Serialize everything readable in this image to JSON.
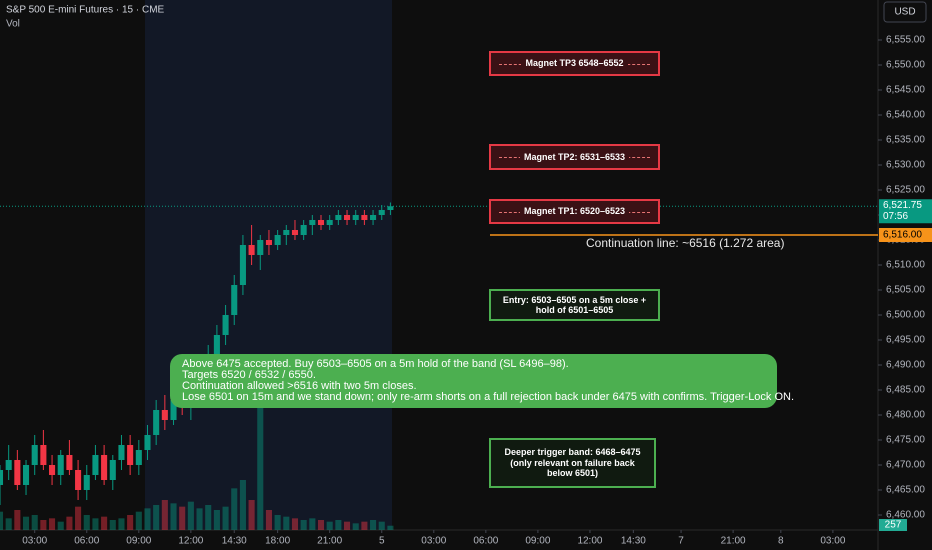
{
  "chart_data": {
    "type": "candlestick",
    "title": "S&P 500 E-mini Futures · 15 · CME",
    "volume_label": "Vol",
    "currency": "USD",
    "x": [
      0.5,
      1,
      1.5,
      2,
      2.5,
      3,
      3.5,
      4,
      4.5,
      5,
      5.5,
      6,
      6.5,
      7,
      7.5,
      8,
      8.5,
      9,
      9.5,
      10,
      10.5,
      11,
      11.5,
      12,
      12.5,
      13,
      13.5,
      14,
      14.5,
      15,
      15.5,
      16,
      16.5,
      17,
      17.5,
      18,
      18.5,
      19,
      19.5,
      20,
      20.5,
      21,
      21.5,
      22,
      22.5,
      23,
      23.5
    ],
    "open": [
      6468,
      6466,
      6469,
      6471,
      6466,
      6470,
      6474,
      6470,
      6468,
      6472,
      6469,
      6465,
      6468,
      6472,
      6467,
      6471,
      6474,
      6470,
      6473,
      6476,
      6481,
      6479,
      6483,
      6482,
      6486,
      6489,
      6492,
      6496,
      6500,
      6506,
      6514,
      6512,
      6515,
      6514,
      6516,
      6517,
      6516,
      6518,
      6519,
      6518,
      6519,
      6520,
      6519,
      6520,
      6519,
      6520,
      6521
    ],
    "high": [
      6472,
      6470,
      6474,
      6473,
      6471,
      6476,
      6477,
      6472,
      6473,
      6475,
      6471,
      6470,
      6474,
      6474,
      6472,
      6476,
      6476,
      6475,
      6478,
      6483,
      6484,
      6485,
      6488,
      6487,
      6491,
      6494,
      6498,
      6502,
      6508,
      6516,
      6518,
      6516,
      6517,
      6517,
      6518,
      6519,
      6519,
      6520,
      6520,
      6520,
      6521,
      6521,
      6521,
      6521,
      6521,
      6522,
      6522.5
    ],
    "low": [
      6464,
      6462,
      6467,
      6465,
      6464,
      6468,
      6469,
      6466,
      6466,
      6468,
      6463,
      6463,
      6467,
      6466,
      6465,
      6469,
      6468,
      6468,
      6471,
      6474,
      6477,
      6478,
      6480,
      6479,
      6484,
      6487,
      6490,
      6494,
      6498,
      6504,
      6510,
      6509,
      6512,
      6513,
      6514,
      6515,
      6515,
      6516,
      6517,
      6517,
      6518,
      6518,
      6518,
      6518,
      6518,
      6519,
      6520
    ],
    "close": [
      6466,
      6469,
      6471,
      6466,
      6470,
      6474,
      6470,
      6468,
      6472,
      6469,
      6465,
      6468,
      6472,
      6467,
      6471,
      6474,
      6470,
      6473,
      6476,
      6481,
      6479,
      6483,
      6482,
      6486,
      6489,
      6492,
      6496,
      6500,
      6506,
      6514,
      6512,
      6515,
      6514,
      6516,
      6517,
      6516,
      6518,
      6519,
      6518,
      6519,
      6520,
      6519,
      6520,
      6519,
      6520,
      6521,
      6521.75
    ],
    "volume": [
      900,
      1100,
      700,
      1200,
      800,
      900,
      600,
      700,
      500,
      800,
      1400,
      900,
      700,
      800,
      600,
      700,
      900,
      1100,
      1300,
      1500,
      1800,
      1600,
      1400,
      1700,
      1300,
      1500,
      1200,
      1400,
      2500,
      3000,
      1800,
      9000,
      1200,
      900,
      800,
      700,
      600,
      700,
      600,
      500,
      600,
      500,
      400,
      500,
      600,
      500,
      257
    ],
    "up_color": "#089981",
    "down_color": "#f23645",
    "xlim": [
      1,
      51.6
    ],
    "ylim": [
      6457,
      6563
    ],
    "xticks": [
      {
        "value": 3,
        "label": "03:00"
      },
      {
        "value": 6,
        "label": "06:00"
      },
      {
        "value": 9,
        "label": "09:00"
      },
      {
        "value": 12,
        "label": "12:00"
      },
      {
        "value": 14.5,
        "label": "14:30"
      },
      {
        "value": 17,
        "label": "18:00"
      },
      {
        "value": 20,
        "label": "21:00"
      },
      {
        "value": 23,
        "label": "5"
      },
      {
        "value": 26,
        "label": "03:00"
      },
      {
        "value": 29,
        "label": "06:00"
      },
      {
        "value": 32,
        "label": "09:00"
      },
      {
        "value": 35,
        "label": "12:00"
      },
      {
        "value": 37.5,
        "label": "14:30"
      },
      {
        "value": 40.25,
        "label": "7"
      },
      {
        "value": 43.25,
        "label": "21:00"
      },
      {
        "value": 46,
        "label": "8"
      },
      {
        "value": 49,
        "label": "03:00"
      }
    ],
    "yticks": [
      {
        "value": 6460,
        "label": "6,460.00"
      },
      {
        "value": 6465,
        "label": "6,465.00"
      },
      {
        "value": 6470,
        "label": "6,470.00"
      },
      {
        "value": 6475,
        "label": "6,475.00"
      },
      {
        "value": 6480,
        "label": "6,480.00"
      },
      {
        "value": 6485,
        "label": "6,485.00"
      },
      {
        "value": 6490,
        "label": "6,490.00"
      },
      {
        "value": 6495,
        "label": "6,495.00"
      },
      {
        "value": 6500,
        "label": "6,500.00"
      },
      {
        "value": 6505,
        "label": "6,505.00"
      },
      {
        "value": 6510,
        "label": "6,510.00"
      },
      {
        "value": 6515,
        "label": "6,515.00"
      },
      {
        "value": 6520,
        "label": "6,520.00"
      },
      {
        "value": 6525,
        "label": "6,525.00"
      },
      {
        "value": 6530,
        "label": "6,530.00"
      },
      {
        "value": 6535,
        "label": "6,535.00"
      },
      {
        "value": 6540,
        "label": "6,540.00"
      },
      {
        "value": 6545,
        "label": "6,545.00"
      },
      {
        "value": 6550,
        "label": "6,550.00"
      },
      {
        "value": 6555,
        "label": "6,555.00"
      }
    ],
    "grid": false,
    "last_price": {
      "value": 6521.75,
      "label": "6,521.75"
    },
    "countdown": "07:56",
    "level": {
      "value": 6516,
      "label": "6,516.00"
    },
    "level_color": "#f7931a",
    "level_text": "Continuation line: ~6516 (1.272 area)",
    "magnets": [
      "Magnet TP3 6548–6552",
      "Magnet TP2: 6531–6533",
      "Magnet TP1: 6520–6523"
    ],
    "zones": [
      "Entry: 6503–6505 on a 5m close + hold of 6501–6505",
      "Deeper trigger band: 6468–6475 (only relevant on failure back below 6501)"
    ],
    "note": [
      "Above 6475 accepted. Buy 6503–6505 on a 5m hold of the band (SL 6496–98).",
      "Targets 6520 / 6532 / 6550.",
      "Continuation allowed >6516 with two 5m closes.",
      "Lose 6501 on 15m and we stand down; only re-arm shorts on a full rejection back under 6475 with confirms. Trigger-Lock ON."
    ]
  }
}
